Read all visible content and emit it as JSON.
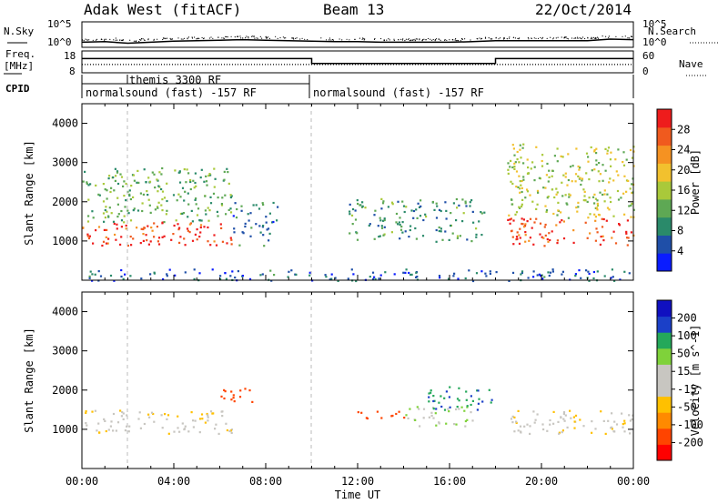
{
  "header": {
    "radar": "Adak West (fitACF)",
    "beam": "Beam 13",
    "date": "22/Oct/2014"
  },
  "panel_labels": {
    "nsky": "N.Sky",
    "nsearch": "N.Search",
    "freq_line1": "Freq.",
    "freq_line2": "[MHz]",
    "nave": "Nave",
    "cpid": "CPID"
  },
  "noise_ticks": {
    "top": "10^5",
    "bottom": "10^0"
  },
  "freq_ticks": {
    "left_top": "18",
    "left_bottom": "8",
    "right_top": "60",
    "right_bottom": "0"
  },
  "cpid_segments": [
    {
      "start_hour": 0,
      "end_hour": 10,
      "label": "normalsound (fast) -157 RF"
    },
    {
      "start_hour": 2,
      "end_hour": 2.1,
      "label": "themis 3300 RF"
    },
    {
      "start_hour": 10,
      "end_hour": 24,
      "label": "normalsound (fast) -157 RF"
    }
  ],
  "xlabel": "Time UT",
  "colors": {
    "power": [
      "#0a1cff",
      "#1f4fa8",
      "#2a8a6a",
      "#5ea854",
      "#a9c93a",
      "#f2c12e",
      "#f59222",
      "#f05a1e",
      "#ee1c1c"
    ],
    "velocity": [
      "#ff0000",
      "#ff4400",
      "#ff8a00",
      "#ffc000",
      "#c8c6c1",
      "#c8c6c1",
      "#7fd23a",
      "#24a85a",
      "#1b40c8",
      "#1010c0"
    ]
  },
  "chart_data": [
    {
      "type": "line",
      "title": "N.Sky / N.Search",
      "x_unit": "hours UT",
      "xlim": [
        0,
        24
      ],
      "ylim_log10": [
        0,
        5
      ],
      "series": [
        {
          "name": "N.Sky",
          "x": [
            0,
            1,
            2,
            3,
            4,
            5,
            6,
            7,
            8,
            9,
            10,
            11,
            12,
            13,
            14,
            15,
            16,
            17,
            18,
            19,
            20,
            21,
            22,
            23,
            24
          ],
          "log10_values": [
            1.0,
            1.1,
            0.8,
            1.0,
            1.2,
            1.3,
            1.4,
            1.5,
            1.4,
            1.3,
            1.2,
            1.1,
            1.1,
            1.0,
            1.0,
            1.0,
            1.0,
            1.1,
            1.3,
            1.3,
            1.3,
            1.3,
            1.3,
            1.6,
            1.5
          ]
        }
      ]
    },
    {
      "type": "line",
      "title": "Freq. [MHz] / Nave",
      "xlim": [
        0,
        24
      ],
      "ylim": [
        8,
        18
      ],
      "series": [
        {
          "name": "Freq.",
          "x": [
            0,
            10,
            10,
            18,
            18,
            24
          ],
          "values": [
            14.5,
            14.5,
            12.3,
            12.3,
            14.5,
            14.5
          ]
        },
        {
          "name": "Nave",
          "x": [
            0,
            24
          ],
          "values": [
            11.8,
            11.8
          ]
        }
      ]
    },
    {
      "type": "heatmap",
      "ylabel": "Slant Range [km]",
      "colorbar_label": "Power [dB]",
      "colorbar_ticks": [
        "4",
        "8",
        "12",
        "16",
        "20",
        "24",
        "28"
      ],
      "xlim": [
        0,
        24
      ],
      "ylim": [
        0,
        4500
      ],
      "x_ticks": [
        "00:00",
        "04:00",
        "08:00",
        "12:00",
        "16:00",
        "20:00",
        "00:00"
      ],
      "y_ticks": [
        1000,
        2000,
        3000,
        4000
      ],
      "features": [
        {
          "start_hour": 0,
          "end_hour": 6.5,
          "range_min_km": 900,
          "range_max_km": 1500,
          "dB": 28
        },
        {
          "start_hour": 0,
          "end_hour": 6.5,
          "range_min_km": 1500,
          "range_max_km": 2900,
          "dB": 12
        },
        {
          "start_hour": 6.5,
          "end_hour": 8.5,
          "range_min_km": 900,
          "range_max_km": 2000,
          "dB": 8
        },
        {
          "start_hour": 11.5,
          "end_hour": 17.5,
          "range_min_km": 1000,
          "range_max_km": 2100,
          "dB": 10
        },
        {
          "start_hour": 18.5,
          "end_hour": 24,
          "range_min_km": 900,
          "range_max_km": 1600,
          "dB": 28
        },
        {
          "start_hour": 18.5,
          "end_hour": 24,
          "range_min_km": 1600,
          "range_max_km": 3500,
          "dB": 16
        },
        {
          "start_hour": 0,
          "end_hour": 24,
          "range_min_km": 0,
          "range_max_km": 300,
          "dB": 6
        }
      ]
    },
    {
      "type": "heatmap",
      "ylabel": "Slant Range [km]",
      "colorbar_label": "Velocity [m s^-1]",
      "colorbar_ticks": [
        "-200",
        "-100",
        "-50",
        "-15",
        "15",
        "50",
        "100",
        "200"
      ],
      "xlim": [
        0,
        24
      ],
      "ylim": [
        0,
        4500
      ],
      "x_ticks": [
        "00:00",
        "04:00",
        "08:00",
        "12:00",
        "16:00",
        "20:00",
        "00:00"
      ],
      "y_ticks": [
        1000,
        2000,
        3000,
        4000
      ],
      "features": [
        {
          "start_hour": 0,
          "end_hour": 6.5,
          "range_min_km": 900,
          "range_max_km": 1500,
          "velocity": 0
        },
        {
          "start_hour": 6.0,
          "end_hour": 7.5,
          "range_min_km": 1700,
          "range_max_km": 2100,
          "velocity": -150
        },
        {
          "start_hour": 11.5,
          "end_hour": 14.0,
          "range_min_km": 1300,
          "range_max_km": 1500,
          "velocity": -150
        },
        {
          "start_hour": 14.0,
          "end_hour": 17.0,
          "range_min_km": 1100,
          "range_max_km": 1600,
          "velocity": 40
        },
        {
          "start_hour": 15.0,
          "end_hour": 18.0,
          "range_min_km": 1500,
          "range_max_km": 2100,
          "velocity": 200
        },
        {
          "start_hour": 18.5,
          "end_hour": 24,
          "range_min_km": 900,
          "range_max_km": 1500,
          "velocity": 0
        }
      ]
    }
  ]
}
